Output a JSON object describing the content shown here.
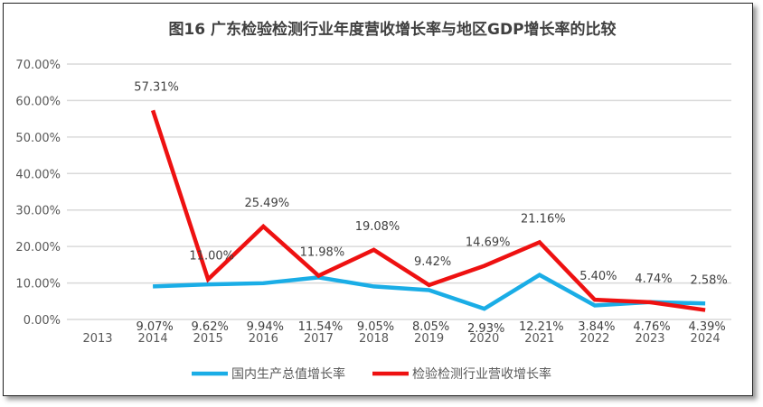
{
  "chart_data": {
    "type": "line",
    "title": "图16 广东检验检测行业年度营收增长率与地区GDP增长率的比较",
    "categories": [
      "2013",
      "2014",
      "2015",
      "2016",
      "2017",
      "2018",
      "2019",
      "2020",
      "2021",
      "2022",
      "2023",
      "2024"
    ],
    "ylim": [
      0,
      70
    ],
    "yticks": [
      "0.00%",
      "10.00%",
      "20.00%",
      "30.00%",
      "40.00%",
      "50.00%",
      "60.00%",
      "70.00%"
    ],
    "grid": true,
    "legend_position": "bottom",
    "series": [
      {
        "name": "国内生产总值增长率",
        "color": "#1AADE6",
        "values": [
          null,
          9.07,
          9.62,
          9.94,
          11.54,
          9.05,
          8.05,
          2.93,
          12.21,
          3.84,
          4.76,
          4.39
        ],
        "labels": [
          "",
          "9.07%",
          "9.62%",
          "9.94%",
          "11.54%",
          "9.05%",
          "8.05%",
          "2.93%",
          "12.21%",
          "3.84%",
          "4.76%",
          "4.39%"
        ]
      },
      {
        "name": "检验检测行业营收增长率",
        "color": "#EE1111",
        "values": [
          null,
          57.31,
          11.0,
          25.49,
          11.98,
          19.08,
          9.42,
          14.69,
          21.16,
          5.4,
          4.74,
          2.58
        ],
        "labels": [
          "",
          "57.31%",
          "11.00%",
          "25.49%",
          "11.98%",
          "19.08%",
          "9.42%",
          "14.69%",
          "21.16%",
          "5.40%",
          "4.74%",
          "2.58%"
        ]
      }
    ]
  }
}
